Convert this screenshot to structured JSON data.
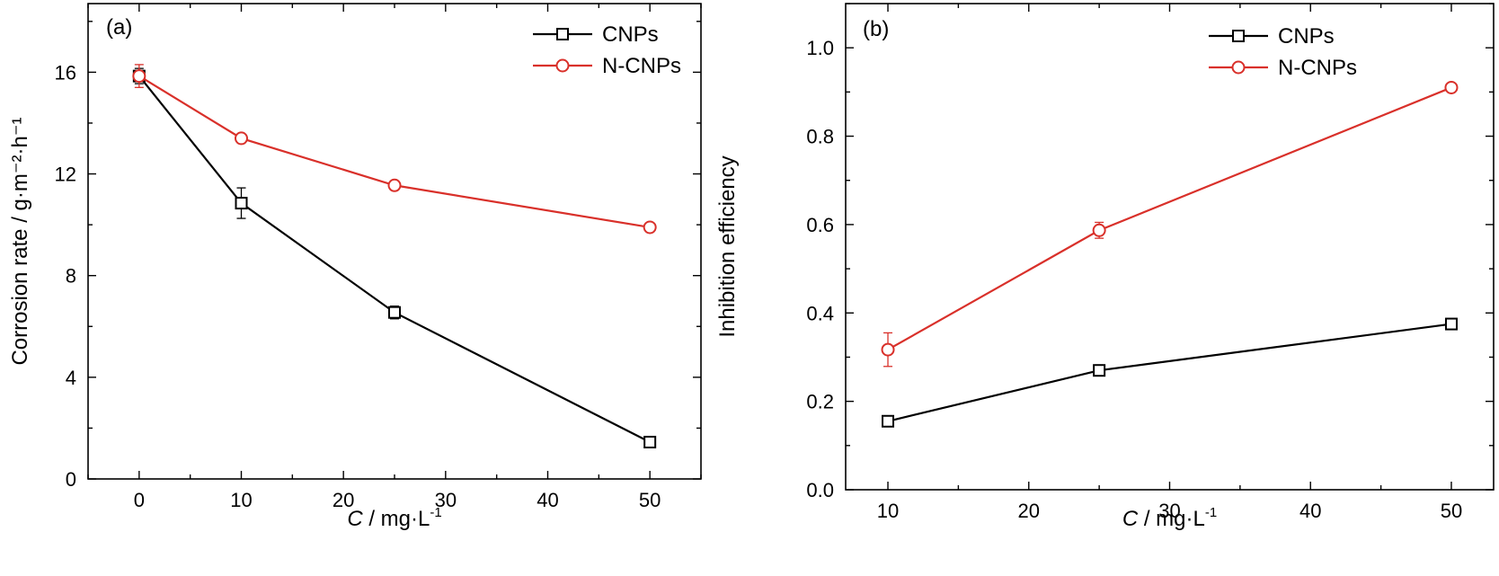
{
  "chart_data": [
    {
      "type": "line",
      "panel_label": "(a)",
      "xlabel_var": "C",
      "xlabel_unit": "/ mg·L",
      "xlabel_sup": "-1",
      "ylabel": "Corrosion rate / g·m⁻²·h⁻¹",
      "xlim": [
        -5,
        55
      ],
      "ylim": [
        0,
        18.7
      ],
      "xticks": [
        0,
        10,
        20,
        30,
        40,
        50
      ],
      "yticks": [
        0,
        4,
        8,
        12,
        16
      ],
      "legend_position": "top-right",
      "series": [
        {
          "name": "CNPs",
          "color": "#000000",
          "marker": "square",
          "x": [
            0,
            10,
            25,
            50
          ],
          "y": [
            15.85,
            10.85,
            6.55,
            1.45
          ],
          "yerr": [
            0.3,
            0.6,
            0.25,
            0.12
          ]
        },
        {
          "name": "N-CNPs",
          "color": "#d9302a",
          "marker": "circle",
          "x": [
            0,
            10,
            25,
            50
          ],
          "y": [
            15.85,
            13.4,
            11.55,
            9.9
          ],
          "yerr": [
            0.45,
            0.1,
            0.12,
            0.1
          ]
        }
      ]
    },
    {
      "type": "line",
      "panel_label": "(b)",
      "xlabel_var": "C",
      "xlabel_unit": "/ mg·L",
      "xlabel_sup": "-1",
      "ylabel": "Inhibition efficiency",
      "xlim": [
        7,
        53
      ],
      "ylim": [
        0,
        1.1
      ],
      "xticks": [
        10,
        20,
        30,
        40,
        50
      ],
      "yticks": [
        0.0,
        0.2,
        0.4,
        0.6,
        0.8,
        1.0
      ],
      "ytick_labels": [
        "0.0",
        "0.2",
        "0.4",
        "0.6",
        "0.8",
        "1.0"
      ],
      "legend_position": "top-right",
      "series": [
        {
          "name": "CNPs",
          "color": "#000000",
          "marker": "square",
          "x": [
            10,
            25,
            50
          ],
          "y": [
            0.155,
            0.27,
            0.375
          ],
          "yerr": [
            0.005,
            0.01,
            0.005
          ]
        },
        {
          "name": "N-CNPs",
          "color": "#d9302a",
          "marker": "circle",
          "x": [
            10,
            25,
            50
          ],
          "y": [
            0.317,
            0.587,
            0.91
          ],
          "yerr": [
            0.038,
            0.018,
            0.008
          ]
        }
      ]
    }
  ]
}
